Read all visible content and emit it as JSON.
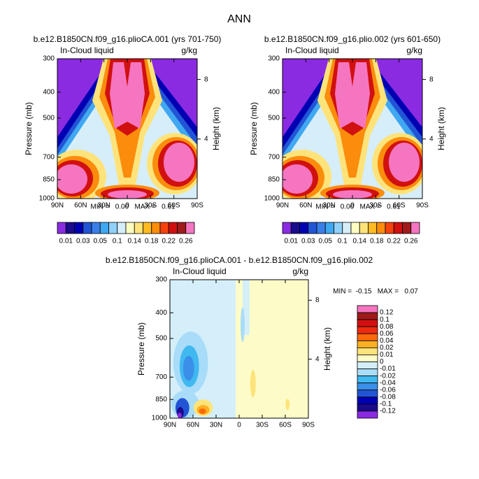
{
  "title": "ANN",
  "panels": [
    {
      "title": "b.e12.B1850CN.f09_g16.plioCA.001 (yrs 701-750)",
      "left_label": "In-Cloud liquid",
      "right_label": "g/kg",
      "y_axis_label": "Pressure (mb)",
      "y2_axis_label": "Height (km)",
      "stats": "MIN =   0.00   MAX =   0.61",
      "y_scale": "log",
      "ylim": [
        1000,
        300
      ],
      "yticks": [
        300,
        400,
        500,
        700,
        850,
        1000
      ],
      "y2ticks": [
        8,
        4
      ],
      "xlim": [
        90,
        -90
      ],
      "xticks": [
        {
          "value": 90,
          "label": "90N"
        },
        {
          "value": 60,
          "label": "60N"
        },
        {
          "value": 30,
          "label": "30N"
        },
        0,
        {
          "value": -30,
          "label": "30S"
        },
        {
          "value": -60,
          "label": "60S"
        },
        {
          "value": -90,
          "label": "90S"
        }
      ],
      "colorbar": {
        "labels": [
          0.01,
          0.03,
          0.05,
          0.1,
          0.14,
          0.18,
          0.22,
          0.26
        ],
        "colors": [
          "#8a2be2",
          "#1a0a8c",
          "#0000b3",
          "#2255d6",
          "#3a7fe8",
          "#40a8f0",
          "#8fd0f8",
          "#d6eefa",
          "#fdfcc0",
          "#fde37a",
          "#fdbb22",
          "#fb8c0c",
          "#f5420c",
          "#d11010",
          "#a01a1a",
          "#f575c0"
        ]
      }
    },
    {
      "title": "b.e12.B1850CN.f09_g16.plio.002 (yrs 601-650)",
      "left_label": "In-Cloud liquid",
      "right_label": "g/kg",
      "y_axis_label": "Pressure (mb)",
      "y2_axis_label": "Height (km)",
      "stats": "MIN =   0.00   MAX =   0.61",
      "y_scale": "log",
      "ylim": [
        1000,
        300
      ],
      "yticks": [
        300,
        400,
        500,
        700,
        850,
        1000
      ],
      "y2ticks": [
        8,
        4
      ],
      "xlim": [
        90,
        -90
      ],
      "xticks": [
        {
          "value": 90,
          "label": "90N"
        },
        {
          "value": 60,
          "label": "60N"
        },
        {
          "value": 30,
          "label": "30N"
        },
        0,
        {
          "value": -30,
          "label": "30S"
        },
        {
          "value": -60,
          "label": "60S"
        },
        {
          "value": -90,
          "label": "90S"
        }
      ],
      "colorbar": {
        "labels": [
          0.01,
          0.03,
          0.05,
          0.1,
          0.14,
          0.18,
          0.22,
          0.26
        ],
        "colors": [
          "#8a2be2",
          "#1a0a8c",
          "#0000b3",
          "#2255d6",
          "#3a7fe8",
          "#40a8f0",
          "#8fd0f8",
          "#d6eefa",
          "#fdfcc0",
          "#fde37a",
          "#fdbb22",
          "#fb8c0c",
          "#f5420c",
          "#d11010",
          "#a01a1a",
          "#f575c0"
        ]
      }
    },
    {
      "title": "b.e12.B1850CN.f09_g16.plioCA.001 - b.e12.B1850CN.f09_g16.plio.002",
      "left_label": "In-Cloud liquid",
      "right_label": "g/kg",
      "y_axis_label": "Pressure (mb)",
      "y2_axis_label": "Height (km)",
      "stats": "MIN =  -0.15   MAX =   0.07",
      "y_scale": "log",
      "ylim": [
        1000,
        300
      ],
      "yticks": [
        300,
        400,
        500,
        700,
        850,
        1000
      ],
      "y2ticks": [
        8,
        4
      ],
      "xlim": [
        90,
        -90
      ],
      "xticks": [
        {
          "value": 90,
          "label": "90N"
        },
        {
          "value": 60,
          "label": "60N"
        },
        {
          "value": 30,
          "label": "30N"
        },
        0,
        {
          "value": -30,
          "label": "30S"
        },
        {
          "value": -60,
          "label": "60S"
        },
        {
          "value": -90,
          "label": "90S"
        }
      ],
      "colorbar": {
        "labels": [
          0.12,
          0.1,
          0.08,
          0.06,
          0.04,
          0.02,
          0.01,
          0,
          -0.01,
          -0.02,
          -0.04,
          -0.06,
          -0.08,
          -0.1,
          -0.12
        ],
        "colors": [
          "#f575c0",
          "#a01a1a",
          "#d11010",
          "#ee2a10",
          "#fb6a0c",
          "#fdb022",
          "#fde37a",
          "#fdfcc8",
          "#d4effa",
          "#a8dcf8",
          "#40b8f0",
          "#3a8fe8",
          "#2255d6",
          "#0000b3",
          "#1a0a8c",
          "#8a2be2"
        ]
      }
    }
  ]
}
